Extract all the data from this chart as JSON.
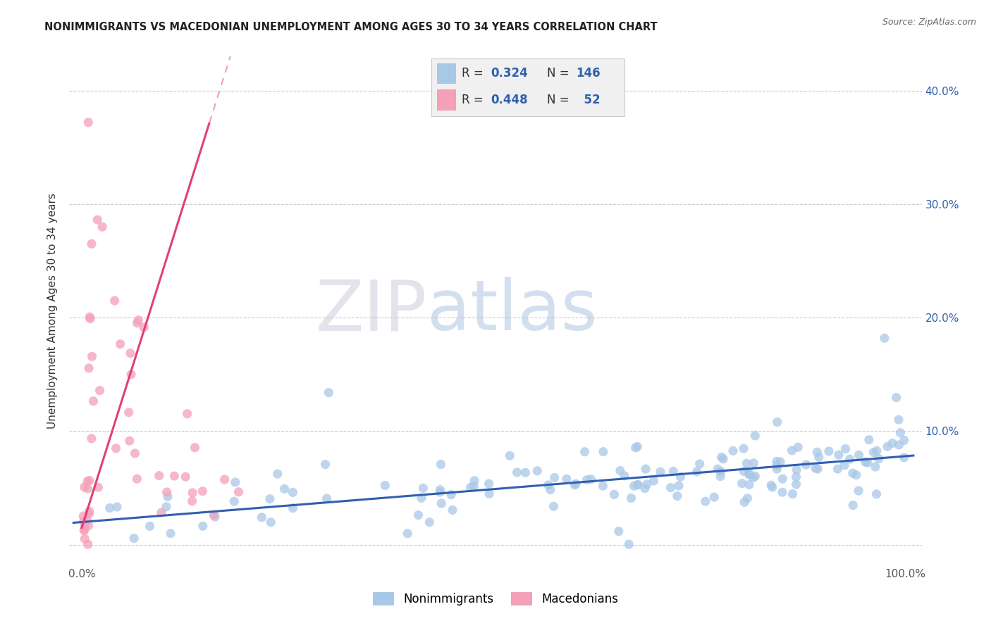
{
  "title": "NONIMMIGRANTS VS MACEDONIAN UNEMPLOYMENT AMONG AGES 30 TO 34 YEARS CORRELATION CHART",
  "source": "Source: ZipAtlas.com",
  "ylabel": "Unemployment Among Ages 30 to 34 years",
  "blue_color": "#a8c8e8",
  "pink_color": "#f4a0b8",
  "blue_line_color": "#3060b0",
  "pink_line_color": "#e0407a",
  "pink_dash_color": "#e8a0c0",
  "watermark_zip": "ZIP",
  "watermark_atlas": "atlas",
  "watermark_zip_color": "#c8c8d8",
  "watermark_atlas_color": "#a8c0e0",
  "legend_box_bg": "#f0f0f0",
  "legend_box_edge": "#cccccc",
  "r_text_color": "#3060b0",
  "label_color": "#3060b0",
  "tick_color": "#555555",
  "grid_color": "#cccccc",
  "title_color": "#222222",
  "source_color": "#666666"
}
